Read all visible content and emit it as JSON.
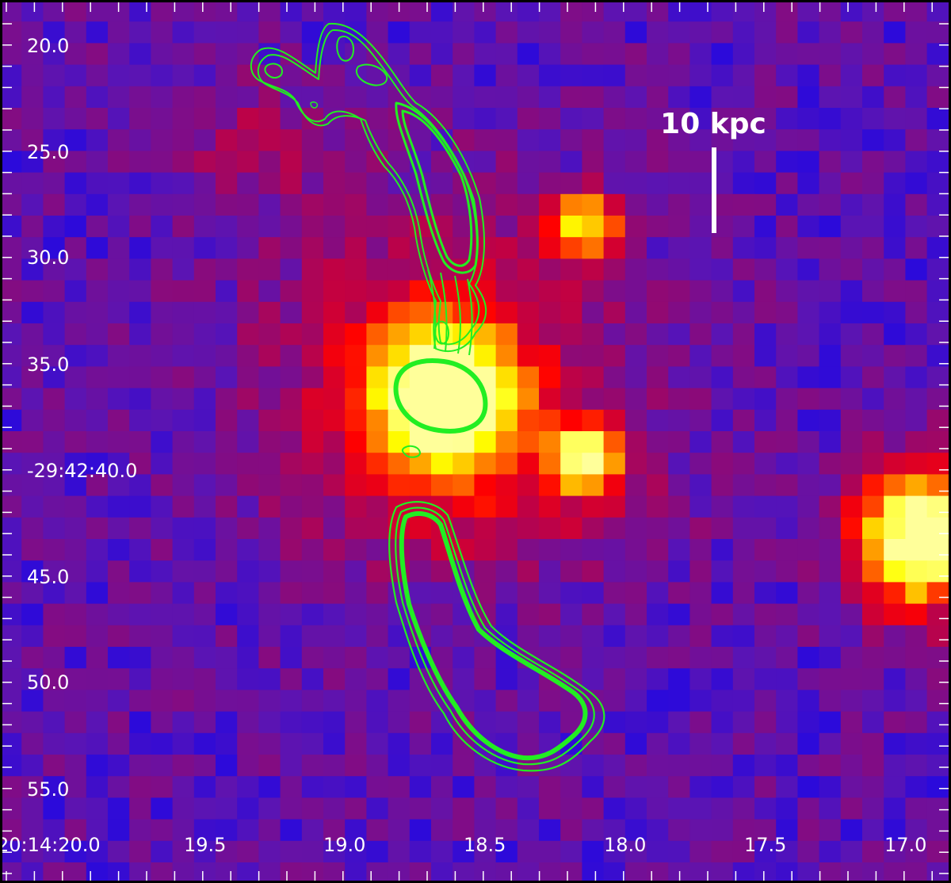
{
  "image": {
    "kind": "astronomical false-color image with radio contours",
    "colormap": [
      "#0000ff",
      "#5a14b4",
      "#8c0a78",
      "#c8003c",
      "#ff0000",
      "#ff6400",
      "#ffb400",
      "#ffff00",
      "#ffff9a"
    ],
    "contour_color": "#22ee22",
    "scale_bar_label": "10 kpc"
  },
  "axes": {
    "y_tick_labels": [
      "20.0",
      "25.0",
      "30.0",
      "35.0",
      "-29:42:40.0",
      "45.0",
      "50.0",
      "55.0"
    ],
    "x_tick_labels": [
      "20:14:20.0",
      "19.5",
      "19.0",
      "18.5",
      "18.0",
      "17.5",
      "17.0"
    ],
    "label_color": "#ffffff"
  }
}
